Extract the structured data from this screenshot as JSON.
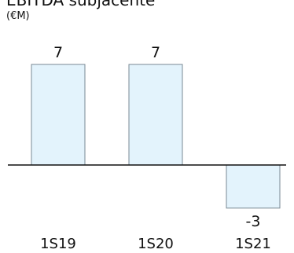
{
  "chart_data": {
    "type": "bar",
    "title": "EBITDA subjacente",
    "unit": "(€M)",
    "categories": [
      "1S19",
      "1S20",
      "1S21"
    ],
    "values": [
      7,
      7,
      -3
    ],
    "data_labels": [
      "7",
      "7",
      "-3"
    ],
    "ylim": [
      -3,
      7
    ],
    "grid": false,
    "legend": "none",
    "bar_fill": "#e3f3fc",
    "bar_stroke": "#7a8a94",
    "axis_color": "#111111"
  }
}
